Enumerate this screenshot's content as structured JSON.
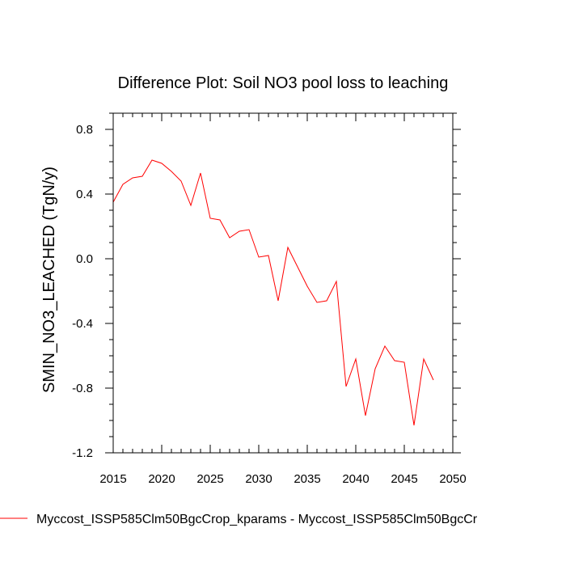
{
  "chart_data": {
    "type": "line",
    "title": "Difference Plot: Soil NO3 pool loss to leaching",
    "xlabel": "",
    "ylabel": "SMIN_NO3_LEACHED  (TgN/y)",
    "xlim": [
      2015,
      2050
    ],
    "ylim": [
      -1.2,
      0.9
    ],
    "xticks": [
      2015,
      2020,
      2025,
      2030,
      2035,
      2040,
      2045,
      2050
    ],
    "xtick_labels": [
      "2015",
      "2020",
      "2025",
      "2030",
      "2035",
      "2040",
      "2045",
      "2050"
    ],
    "yticks": [
      0.8,
      0.4,
      0.0,
      -0.4,
      -0.8,
      -1.2
    ],
    "ytick_labels": [
      "0.8",
      "0.4",
      "0.0",
      "-0.4",
      "-0.8",
      "-1.2"
    ],
    "legend_position": "bottom-left",
    "series": [
      {
        "name": "Myccost_ISSP585Clm50BgcCrop_kparams - Myccost_ISSP585Clm50BgcCr",
        "color": "#ff0000",
        "x": [
          2015,
          2016,
          2017,
          2018,
          2019,
          2020,
          2021,
          2022,
          2023,
          2024,
          2025,
          2026,
          2027,
          2028,
          2029,
          2030,
          2031,
          2032,
          2033,
          2034,
          2035,
          2036,
          2037,
          2038,
          2039,
          2040,
          2041,
          2042,
          2043,
          2044,
          2045,
          2046,
          2047,
          2048
        ],
        "values": [
          0.35,
          0.46,
          0.5,
          0.51,
          0.61,
          0.59,
          0.54,
          0.48,
          0.33,
          0.53,
          0.25,
          0.24,
          0.13,
          0.17,
          0.18,
          0.01,
          0.02,
          -0.26,
          0.07,
          -0.05,
          -0.17,
          -0.27,
          -0.26,
          -0.14,
          -0.79,
          -0.62,
          -0.97,
          -0.68,
          -0.54,
          -0.63,
          -0.64,
          -1.03,
          -0.62,
          -0.75
        ]
      }
    ]
  }
}
